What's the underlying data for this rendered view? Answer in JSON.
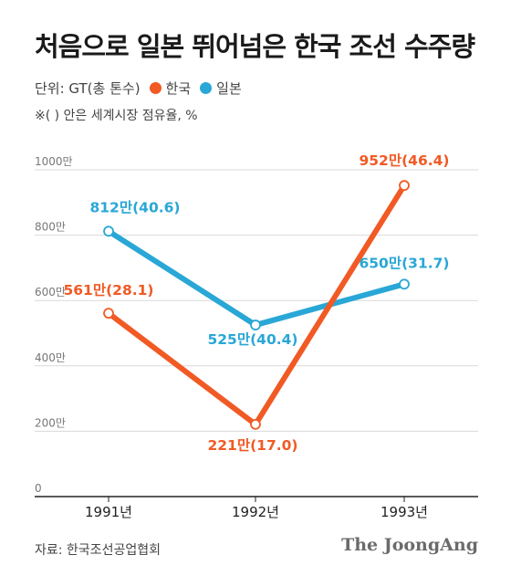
{
  "header": {
    "title": "처음으로 일본 뛰어넘은 한국 조선 수주량",
    "unit_label": "단위: GT(총 톤수)",
    "note": "※( ) 안은 세계시장 점유율, %"
  },
  "footer": {
    "source": "자료: 한국조선공업협회",
    "brand": "The JoongAng"
  },
  "colors": {
    "korea": "#f15a24",
    "japan": "#29a7d6",
    "grid": "#d9d9d9",
    "axis": "#222222"
  },
  "chart_data": {
    "type": "line",
    "x": [
      "1991년",
      "1992년",
      "1993년"
    ],
    "ylim": [
      0,
      1000
    ],
    "yticks": [
      0,
      200,
      400,
      600,
      800,
      1000
    ],
    "ytick_labels": [
      "0",
      "200만",
      "400만",
      "600만",
      "800만",
      "1000만"
    ],
    "series": [
      {
        "name": "한국",
        "color": "#f15a24",
        "values": [
          561,
          221,
          952
        ],
        "labels": [
          "561만(28.1)",
          "221만(17.0)",
          "952만(46.4)"
        ]
      },
      {
        "name": "일본",
        "color": "#29a7d6",
        "values": [
          812,
          525,
          650
        ],
        "labels": [
          "812만(40.6)",
          "525만(40.4)",
          "650만(31.7)"
        ]
      }
    ]
  }
}
